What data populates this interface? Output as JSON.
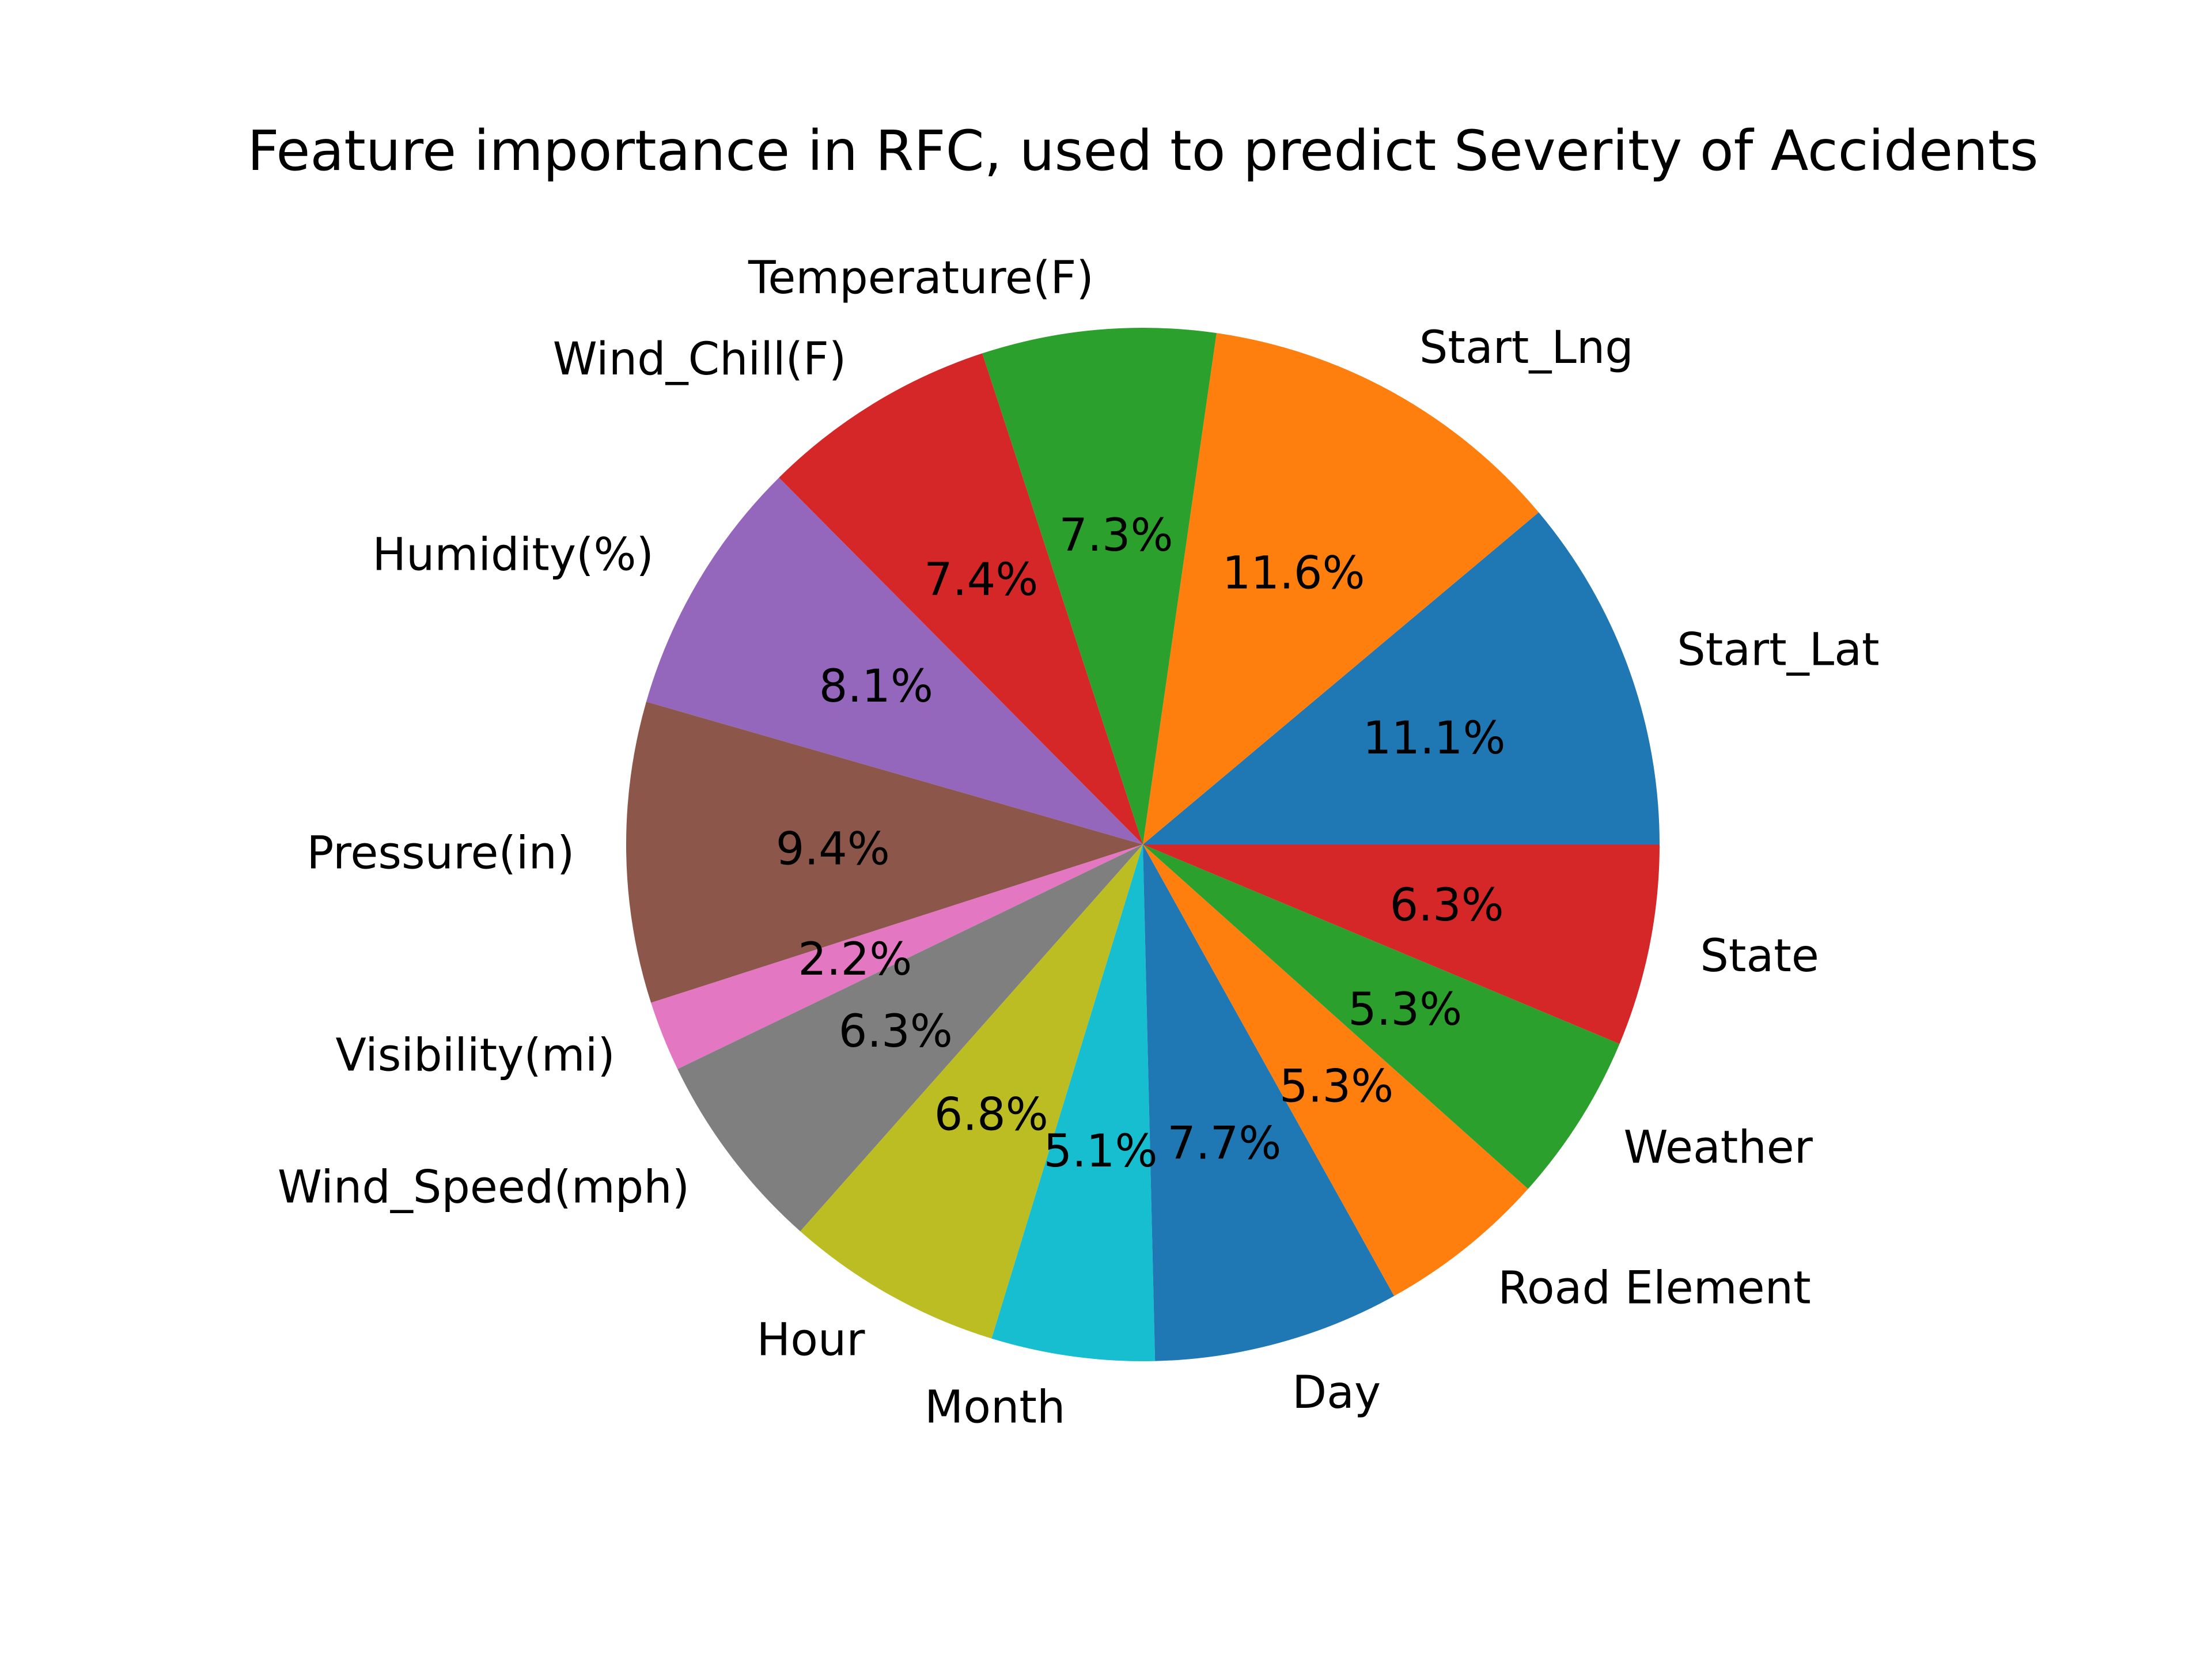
{
  "chart_data": {
    "type": "pie",
    "title": "Feature importance in RFC, used to predict Severity of Accidents",
    "start_angle_deg": 0,
    "direction": "counterclockwise",
    "legend": "none",
    "slices": [
      {
        "label": "Start_Lat",
        "value": 11.1,
        "pct_label": "11.1%",
        "color": "#1f77b4"
      },
      {
        "label": "Start_Lng",
        "value": 11.6,
        "pct_label": "11.6%",
        "color": "#ff7f0e"
      },
      {
        "label": "Temperature(F)",
        "value": 7.3,
        "pct_label": "7.3%",
        "color": "#2ca02c"
      },
      {
        "label": "Wind_Chill(F)",
        "value": 7.4,
        "pct_label": "7.4%",
        "color": "#d62728"
      },
      {
        "label": "Humidity(%)",
        "value": 8.1,
        "pct_label": "8.1%",
        "color": "#9467bd"
      },
      {
        "label": "Pressure(in)",
        "value": 9.4,
        "pct_label": "9.4%",
        "color": "#8c564b"
      },
      {
        "label": "Visibility(mi)",
        "value": 2.2,
        "pct_label": "2.2%",
        "color": "#e377c2"
      },
      {
        "label": "Wind_Speed(mph)",
        "value": 6.3,
        "pct_label": "6.3%",
        "color": "#7f7f7f"
      },
      {
        "label": "Hour",
        "value": 6.8,
        "pct_label": "6.8%",
        "color": "#bcbd22"
      },
      {
        "label": "Month",
        "value": 5.1,
        "pct_label": "5.1%",
        "color": "#17becf"
      },
      {
        "label": "Day",
        "value": 7.7,
        "pct_label": "7.7%",
        "color": "#1f77b4"
      },
      {
        "label": "Road Element",
        "value": 5.3,
        "pct_label": "5.3%",
        "color": "#ff7f0e"
      },
      {
        "label": "Weather",
        "value": 5.3,
        "pct_label": "5.3%",
        "color": "#2ca02c"
      },
      {
        "label": "State",
        "value": 6.3,
        "pct_label": "6.3%",
        "color": "#d62728"
      }
    ]
  }
}
